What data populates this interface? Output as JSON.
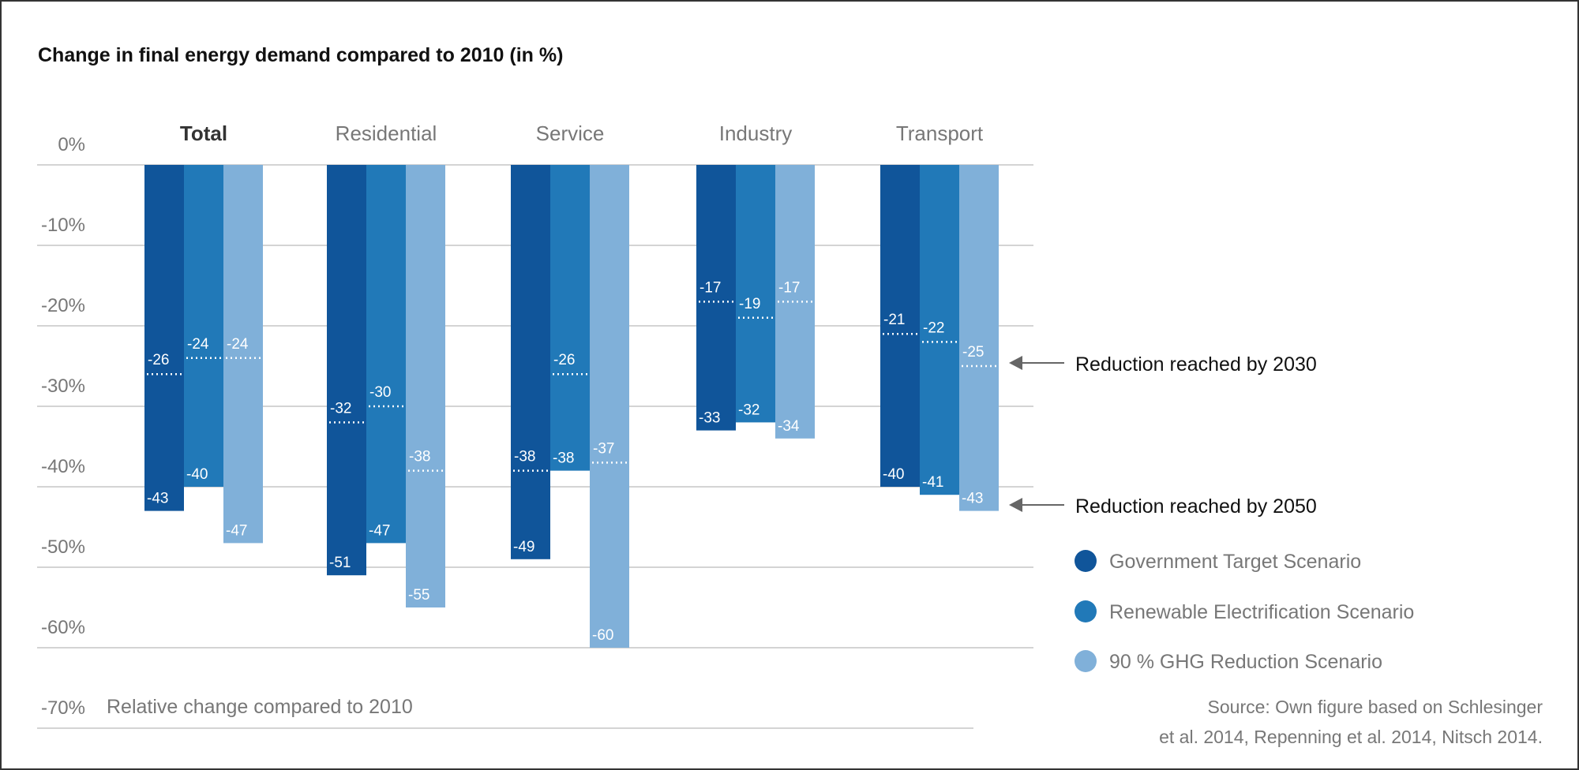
{
  "chart_data": {
    "type": "bar",
    "title": "Change in final energy demand compared to 2010 (in %)",
    "ylabel": "Relative change compared to 2010",
    "ylim": [
      -70,
      0
    ],
    "yticks": [
      "0%",
      "-10%",
      "-20%",
      "-30%",
      "-40%",
      "-50%",
      "-60%",
      "-70%"
    ],
    "grid": true,
    "legend_position": "right",
    "categories": [
      "Total",
      "Residential",
      "Service",
      "Industry",
      "Transport"
    ],
    "series": [
      {
        "name": "Government Target Scenario",
        "color": "#10559a",
        "values_2050": [
          -43,
          -51,
          -49,
          -33,
          -40
        ],
        "values_2030": [
          -26,
          -32,
          -38,
          -17,
          -21
        ]
      },
      {
        "name": "Renewable Electrification Scenario",
        "color": "#2179b8",
        "values_2050": [
          -40,
          -47,
          -38,
          -32,
          -41
        ],
        "values_2030": [
          -24,
          -30,
          -26,
          -19,
          -22
        ]
      },
      {
        "name": "90 % GHG Reduction Scenario",
        "color": "#80b0d9",
        "values_2050": [
          -47,
          -55,
          -60,
          -34,
          -43
        ],
        "values_2030": [
          -24,
          -38,
          -37,
          -17,
          -25
        ]
      }
    ],
    "annotations": {
      "marker_2030": "Reduction reached by 2030",
      "marker_2050": "Reduction reached by 2050"
    },
    "source": [
      "Source: Own figure based on Schlesinger",
      "et al. 2014, Repenning et al. 2014, Nitsch 2014."
    ]
  }
}
